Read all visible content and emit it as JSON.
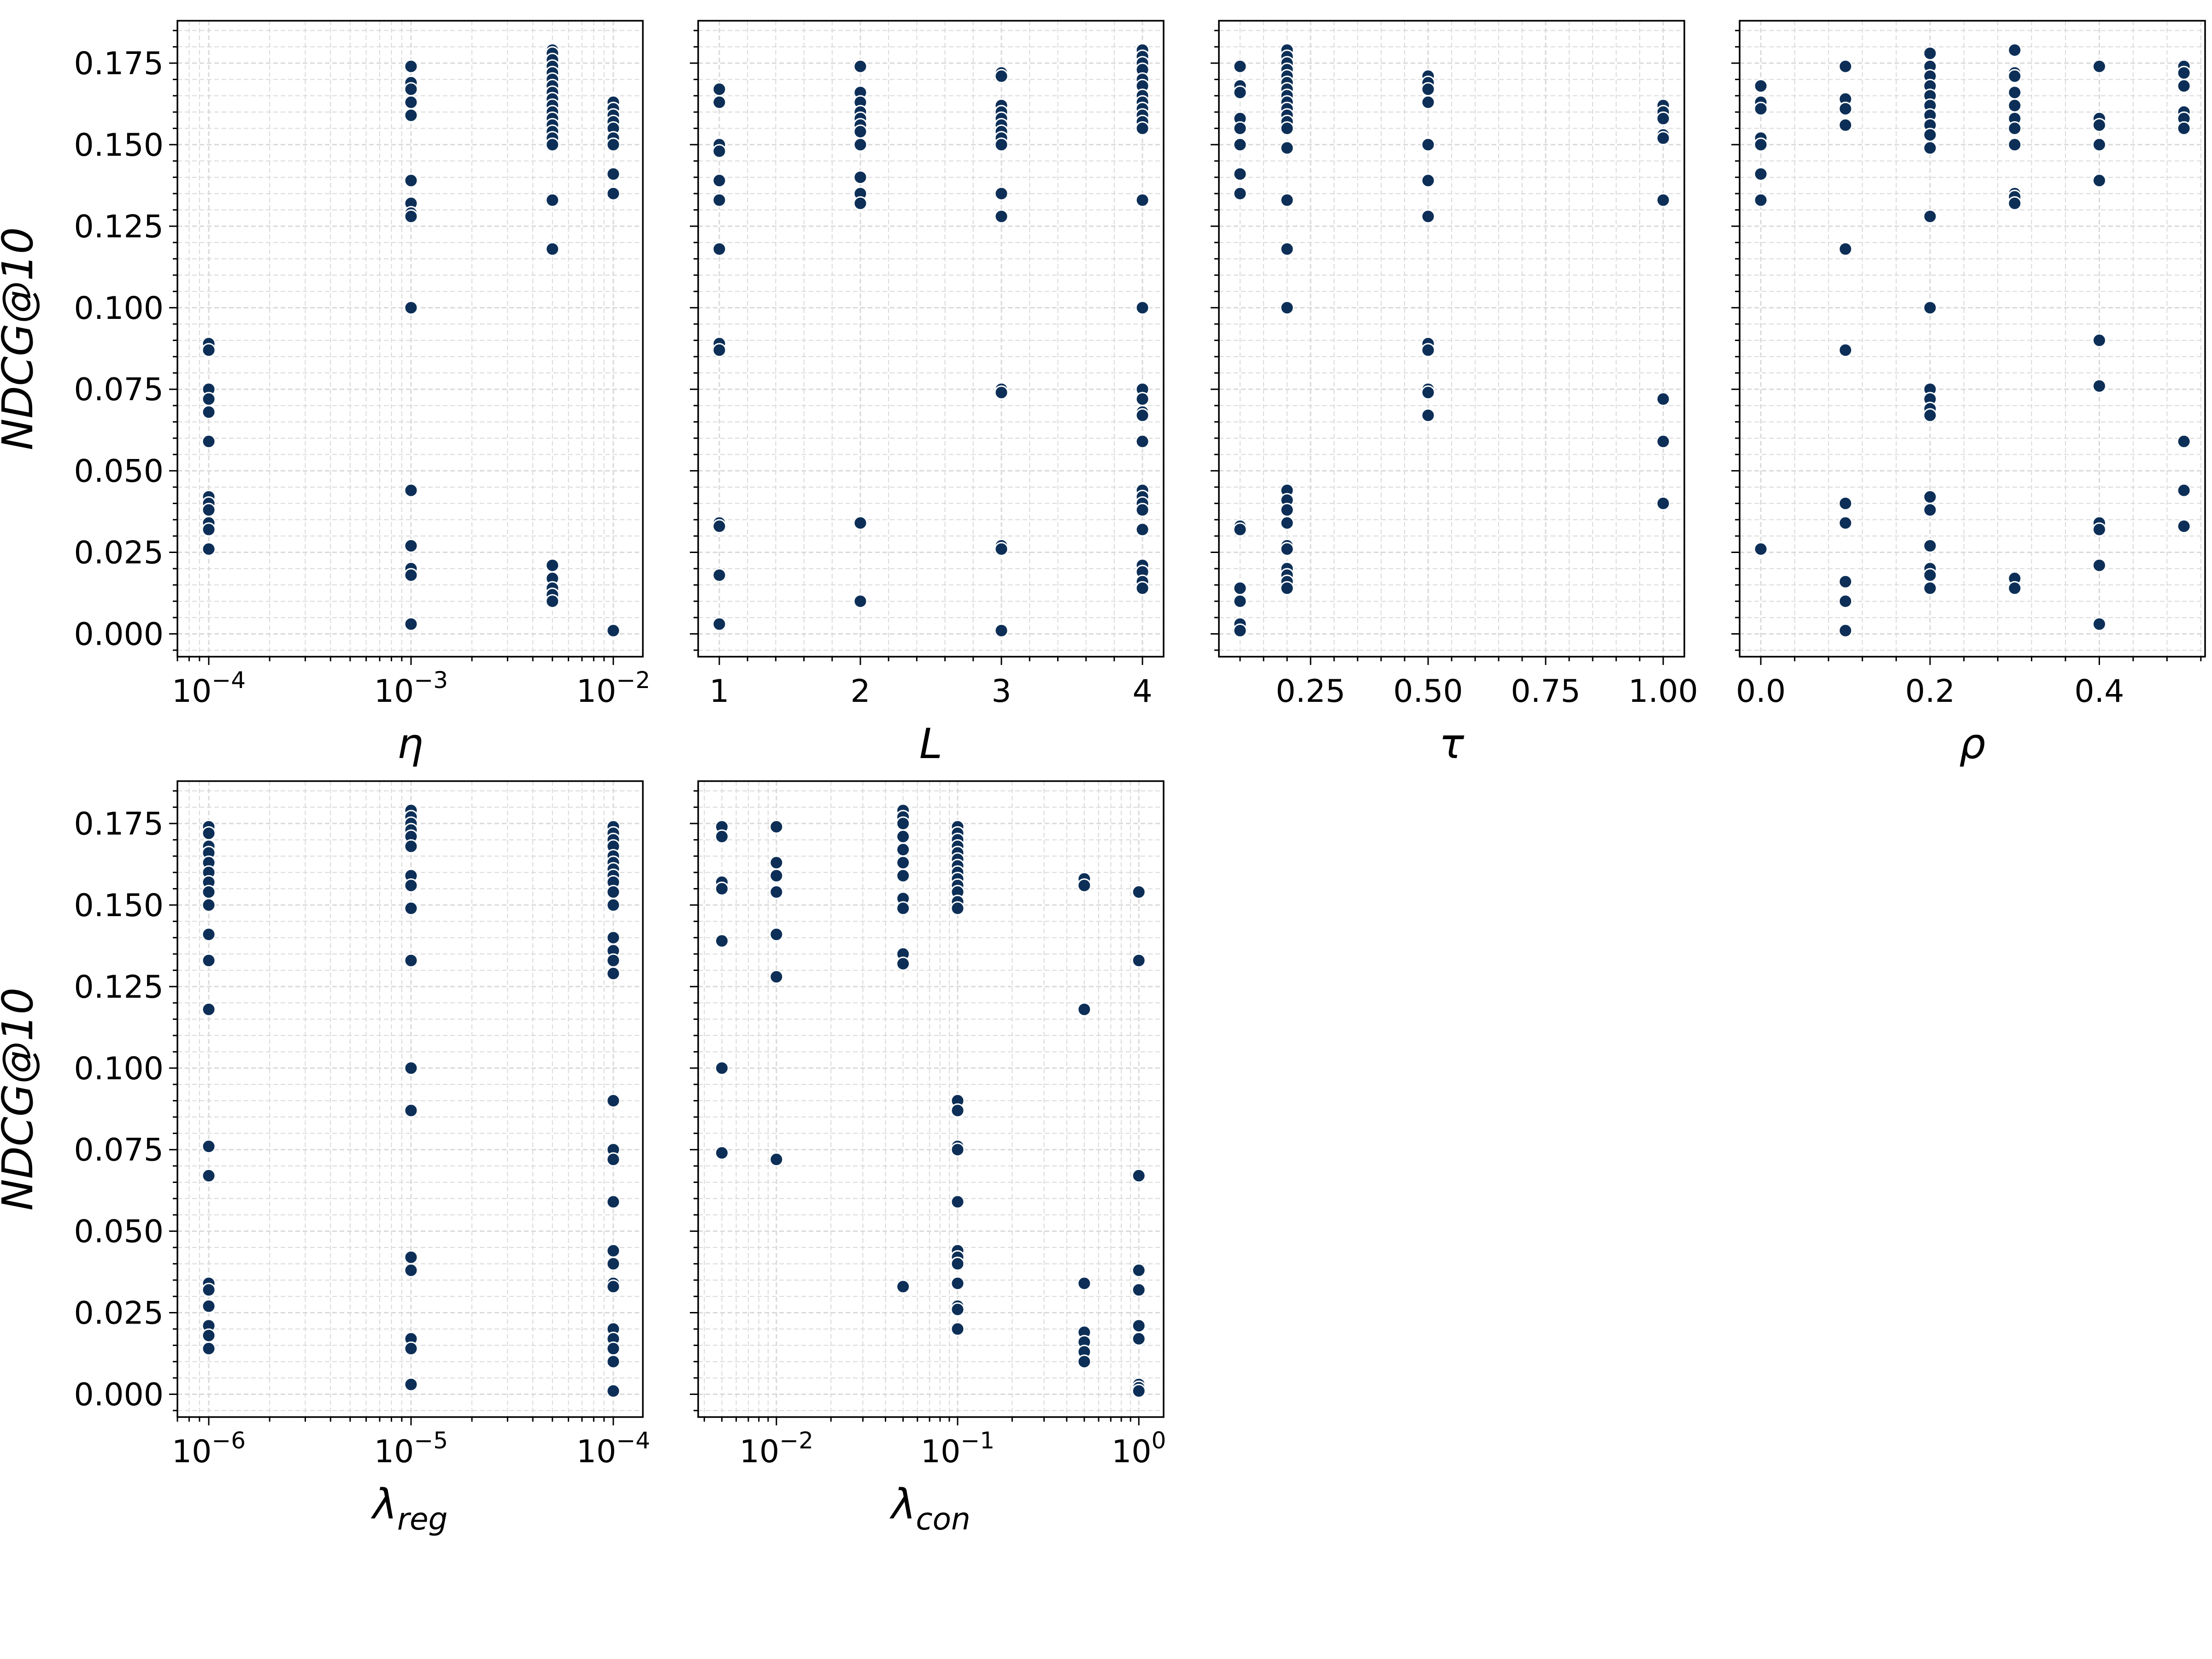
{
  "style": {
    "marker_color": "#0d2f57",
    "marker_edge": "#ffffff",
    "grid_color": "#d9d9d9",
    "frame_color": "#000000"
  },
  "chart_data": [
    {
      "type": "scatter",
      "xlabel": "η",
      "ylabel": "NDCG@10",
      "xscale": "log",
      "xlim": [
        7e-05,
        0.014
      ],
      "ylim": [
        -0.007,
        0.188
      ],
      "grid": true,
      "xticks": [
        {
          "v": 0.0001,
          "b": "10",
          "e": "−4"
        },
        {
          "v": 0.001,
          "b": "10",
          "e": "−3"
        },
        {
          "v": 0.01,
          "b": "10",
          "e": "−2"
        }
      ],
      "yticks": [
        "0.000",
        "0.025",
        "0.050",
        "0.075",
        "0.100",
        "0.125",
        "0.150",
        "0.175"
      ],
      "series": [
        {
          "x": 0.0001,
          "y": [
            0.089,
            0.087,
            0.075,
            0.072,
            0.068,
            0.059,
            0.042,
            0.04,
            0.038,
            0.034,
            0.032,
            0.026
          ]
        },
        {
          "x": 0.001,
          "y": [
            0.174,
            0.169,
            0.167,
            0.163,
            0.159,
            0.139,
            0.132,
            0.129,
            0.128,
            0.1,
            0.044,
            0.027,
            0.02,
            0.018,
            0.003
          ]
        },
        {
          "x": 0.005,
          "y": [
            0.179,
            0.178,
            0.176,
            0.174,
            0.172,
            0.17,
            0.168,
            0.166,
            0.164,
            0.162,
            0.16,
            0.158,
            0.156,
            0.154,
            0.152,
            0.15,
            0.133,
            0.118,
            0.021,
            0.017,
            0.014,
            0.012,
            0.01
          ]
        },
        {
          "x": 0.01,
          "y": [
            0.163,
            0.161,
            0.159,
            0.157,
            0.155,
            0.152,
            0.15,
            0.141,
            0.135,
            0.001
          ]
        }
      ]
    },
    {
      "type": "scatter",
      "xlabel": "L",
      "ylabel": "",
      "xscale": "linear",
      "xlim": [
        0.85,
        4.15
      ],
      "ylim": [
        -0.007,
        0.188
      ],
      "grid": true,
      "xticks": [
        {
          "v": 1,
          "t": "1"
        },
        {
          "v": 2,
          "t": "2"
        },
        {
          "v": 3,
          "t": "3"
        },
        {
          "v": 4,
          "t": "4"
        }
      ],
      "yticks": [],
      "series": [
        {
          "x": 1,
          "y": [
            0.167,
            0.163,
            0.15,
            0.148,
            0.139,
            0.133,
            0.118,
            0.089,
            0.087,
            0.034,
            0.033,
            0.018,
            0.003
          ]
        },
        {
          "x": 2,
          "y": [
            0.174,
            0.166,
            0.163,
            0.16,
            0.158,
            0.156,
            0.154,
            0.15,
            0.14,
            0.135,
            0.132,
            0.034,
            0.01
          ]
        },
        {
          "x": 3,
          "y": [
            0.172,
            0.171,
            0.162,
            0.16,
            0.158,
            0.156,
            0.154,
            0.152,
            0.15,
            0.135,
            0.128,
            0.075,
            0.074,
            0.027,
            0.026,
            0.001
          ]
        },
        {
          "x": 4,
          "y": [
            0.179,
            0.177,
            0.175,
            0.173,
            0.17,
            0.168,
            0.165,
            0.163,
            0.161,
            0.159,
            0.157,
            0.155,
            0.133,
            0.1,
            0.075,
            0.072,
            0.068,
            0.067,
            0.059,
            0.044,
            0.042,
            0.04,
            0.038,
            0.032,
            0.021,
            0.019,
            0.016,
            0.014
          ]
        }
      ]
    },
    {
      "type": "scatter",
      "xlabel": "τ",
      "ylabel": "",
      "xscale": "linear",
      "xlim": [
        0.055,
        1.045
      ],
      "ylim": [
        -0.007,
        0.188
      ],
      "grid": true,
      "xticks": [
        {
          "v": 0.25,
          "t": "0.25"
        },
        {
          "v": 0.5,
          "t": "0.50"
        },
        {
          "v": 0.75,
          "t": "0.75"
        },
        {
          "v": 1.0,
          "t": "1.00"
        }
      ],
      "yticks": [],
      "series": [
        {
          "x": 0.1,
          "y": [
            0.174,
            0.168,
            0.166,
            0.158,
            0.155,
            0.15,
            0.141,
            0.135,
            0.033,
            0.032,
            0.014,
            0.01,
            0.003,
            0.001
          ]
        },
        {
          "x": 0.2,
          "y": [
            0.179,
            0.177,
            0.175,
            0.173,
            0.171,
            0.169,
            0.167,
            0.165,
            0.163,
            0.161,
            0.159,
            0.157,
            0.155,
            0.149,
            0.133,
            0.118,
            0.1,
            0.044,
            0.041,
            0.038,
            0.034,
            0.027,
            0.026,
            0.02,
            0.018,
            0.016,
            0.014
          ]
        },
        {
          "x": 0.5,
          "y": [
            0.171,
            0.169,
            0.167,
            0.163,
            0.15,
            0.139,
            0.128,
            0.089,
            0.087,
            0.075,
            0.074,
            0.067
          ]
        },
        {
          "x": 1.0,
          "y": [
            0.162,
            0.16,
            0.158,
            0.153,
            0.152,
            0.133,
            0.072,
            0.059,
            0.04
          ]
        }
      ]
    },
    {
      "type": "scatter",
      "xlabel": "ρ",
      "ylabel": "",
      "xscale": "linear",
      "xlim": [
        -0.025,
        0.525
      ],
      "ylim": [
        -0.007,
        0.188
      ],
      "grid": true,
      "xticks": [
        {
          "v": 0.0,
          "t": "0.0"
        },
        {
          "v": 0.2,
          "t": "0.2"
        },
        {
          "v": 0.4,
          "t": "0.4"
        }
      ],
      "yticks": [],
      "series": [
        {
          "x": 0.0,
          "y": [
            0.168,
            0.163,
            0.161,
            0.152,
            0.15,
            0.141,
            0.133,
            0.026
          ]
        },
        {
          "x": 0.1,
          "y": [
            0.174,
            0.164,
            0.161,
            0.156,
            0.118,
            0.087,
            0.04,
            0.034,
            0.016,
            0.01,
            0.001
          ]
        },
        {
          "x": 0.2,
          "y": [
            0.178,
            0.174,
            0.171,
            0.168,
            0.165,
            0.162,
            0.159,
            0.156,
            0.153,
            0.149,
            0.128,
            0.1,
            0.075,
            0.072,
            0.069,
            0.067,
            0.042,
            0.038,
            0.027,
            0.02,
            0.018,
            0.014
          ]
        },
        {
          "x": 0.3,
          "y": [
            0.179,
            0.172,
            0.171,
            0.166,
            0.162,
            0.158,
            0.155,
            0.15,
            0.135,
            0.134,
            0.132,
            0.017,
            0.014
          ]
        },
        {
          "x": 0.4,
          "y": [
            0.174,
            0.158,
            0.156,
            0.15,
            0.139,
            0.09,
            0.076,
            0.034,
            0.032,
            0.021,
            0.003
          ]
        },
        {
          "x": 0.5,
          "y": [
            0.174,
            0.172,
            0.168,
            0.16,
            0.158,
            0.155,
            0.059,
            0.044,
            0.033
          ]
        }
      ]
    },
    {
      "type": "scatter",
      "xlabel": "λ",
      "xlabel_sub": "reg",
      "ylabel": "NDCG@10",
      "xscale": "log",
      "xlim": [
        7e-07,
        0.00014
      ],
      "ylim": [
        -0.007,
        0.188
      ],
      "grid": true,
      "xticks": [
        {
          "v": 1e-06,
          "b": "10",
          "e": "−6"
        },
        {
          "v": 1e-05,
          "b": "10",
          "e": "−5"
        },
        {
          "v": 0.0001,
          "b": "10",
          "e": "−4"
        }
      ],
      "yticks": [
        "0.000",
        "0.025",
        "0.050",
        "0.075",
        "0.100",
        "0.125",
        "0.150",
        "0.175"
      ],
      "series": [
        {
          "x": 1e-06,
          "y": [
            0.174,
            0.172,
            0.168,
            0.166,
            0.163,
            0.16,
            0.157,
            0.154,
            0.15,
            0.141,
            0.133,
            0.118,
            0.076,
            0.067,
            0.034,
            0.032,
            0.027,
            0.021,
            0.018,
            0.014
          ]
        },
        {
          "x": 1e-05,
          "y": [
            0.179,
            0.177,
            0.175,
            0.173,
            0.171,
            0.168,
            0.159,
            0.156,
            0.149,
            0.133,
            0.1,
            0.087,
            0.042,
            0.038,
            0.017,
            0.014,
            0.003
          ]
        },
        {
          "x": 0.0001,
          "y": [
            0.174,
            0.172,
            0.17,
            0.168,
            0.165,
            0.163,
            0.161,
            0.159,
            0.157,
            0.154,
            0.15,
            0.14,
            0.136,
            0.133,
            0.129,
            0.09,
            0.075,
            0.072,
            0.059,
            0.044,
            0.04,
            0.034,
            0.033,
            0.02,
            0.017,
            0.014,
            0.01,
            0.001
          ]
        }
      ]
    },
    {
      "type": "scatter",
      "xlabel": "λ",
      "xlabel_sub": "con",
      "ylabel": "",
      "xscale": "log",
      "xlim": [
        0.0037,
        1.37
      ],
      "ylim": [
        -0.007,
        0.188
      ],
      "grid": true,
      "xticks": [
        {
          "v": 0.01,
          "b": "10",
          "e": "−2"
        },
        {
          "v": 0.1,
          "b": "10",
          "e": "−1"
        },
        {
          "v": 1,
          "b": "10",
          "e": "0"
        }
      ],
      "yticks": [],
      "series": [
        {
          "x": 0.005,
          "y": [
            0.174,
            0.171,
            0.157,
            0.155,
            0.139,
            0.1,
            0.074
          ]
        },
        {
          "x": 0.01,
          "y": [
            0.174,
            0.163,
            0.159,
            0.154,
            0.141,
            0.128,
            0.072
          ]
        },
        {
          "x": 0.05,
          "y": [
            0.179,
            0.177,
            0.175,
            0.171,
            0.167,
            0.163,
            0.159,
            0.152,
            0.149,
            0.135,
            0.132,
            0.033
          ]
        },
        {
          "x": 0.1,
          "y": [
            0.174,
            0.172,
            0.17,
            0.168,
            0.166,
            0.164,
            0.162,
            0.16,
            0.158,
            0.156,
            0.154,
            0.151,
            0.149,
            0.09,
            0.087,
            0.076,
            0.075,
            0.059,
            0.044,
            0.042,
            0.04,
            0.034,
            0.027,
            0.026,
            0.02
          ]
        },
        {
          "x": 0.5,
          "y": [
            0.158,
            0.156,
            0.118,
            0.034,
            0.019,
            0.016,
            0.013,
            0.01
          ]
        },
        {
          "x": 1.0,
          "y": [
            0.154,
            0.133,
            0.067,
            0.038,
            0.032,
            0.021,
            0.017,
            0.003,
            0.002,
            0.001
          ]
        }
      ]
    }
  ]
}
